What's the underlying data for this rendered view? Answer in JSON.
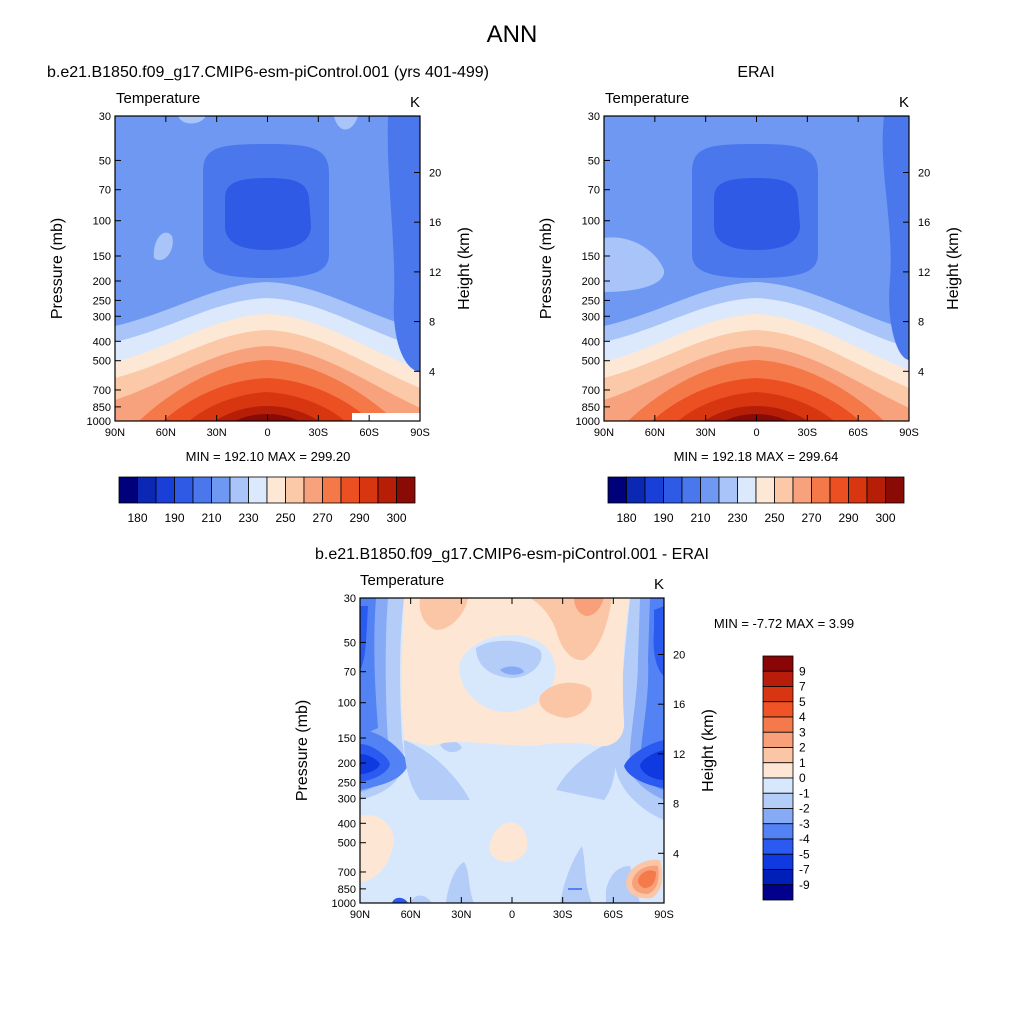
{
  "figure": {
    "title": "ANN"
  },
  "palettes": {
    "temp_colors": [
      "#00007a",
      "#0a28b4",
      "#1a3ed8",
      "#2e5ae6",
      "#4a78ec",
      "#6f98f2",
      "#a8c4f8",
      "#dce8fc",
      "#fde8d6",
      "#fbc8a8",
      "#f7a27c",
      "#f47848",
      "#ec4f22",
      "#d83610",
      "#b61e08",
      "#8a0a06"
    ],
    "diff_colors": [
      "#02008c",
      "#001fb8",
      "#0f3ae0",
      "#2a5af0",
      "#5282f4",
      "#86aaf6",
      "#b4ccf8",
      "#d8e8fc",
      "#fde6d4",
      "#fbc6a6",
      "#f8a07a",
      "#f47a4c",
      "#f05426",
      "#d83612",
      "#b81c0a",
      "#8a0606"
    ]
  },
  "chart_data": [
    {
      "type": "heatmap",
      "id": "model",
      "title": "b.e21.B1850.f09_g17.CMIP6-esm-piControl.001 (yrs 401-499)",
      "left_label": "Temperature",
      "right_label": "K",
      "xlabel": "",
      "ylabel": "Pressure (mb)",
      "ylabel_right": "Height (km)",
      "x_ticks": [
        "90N",
        "60N",
        "30N",
        "0",
        "30S",
        "60S",
        "90S"
      ],
      "y_ticks": [
        "30",
        "50",
        "70",
        "100",
        "150",
        "200",
        "250",
        "300",
        "400",
        "500",
        "700",
        "850",
        "1000"
      ],
      "y_tick_values": [
        30,
        50,
        70,
        100,
        150,
        200,
        250,
        300,
        400,
        500,
        700,
        850,
        1000
      ],
      "height_ticks": [
        "4",
        "8",
        "12",
        "16",
        "20"
      ],
      "height_tick_values": [
        4,
        8,
        12,
        16,
        20
      ],
      "ylim": [
        30,
        1000
      ],
      "stats": "MIN = 192.10  MAX = 299.20",
      "min": 192.1,
      "max": 299.2,
      "colorbar": {
        "orientation": "horizontal",
        "levels": [
          175,
          180,
          185,
          190,
          200,
          210,
          220,
          230,
          240,
          250,
          260,
          270,
          280,
          290,
          295,
          300
        ],
        "labels": [
          "180",
          "190",
          "210",
          "230",
          "250",
          "270",
          "290",
          "300"
        ]
      }
    },
    {
      "type": "heatmap",
      "id": "obs",
      "title": "ERAI",
      "left_label": "Temperature",
      "right_label": "K",
      "xlabel": "",
      "ylabel": "Pressure (mb)",
      "ylabel_right": "Height (km)",
      "x_ticks": [
        "90N",
        "60N",
        "30N",
        "0",
        "30S",
        "60S",
        "90S"
      ],
      "y_ticks": [
        "30",
        "50",
        "70",
        "100",
        "150",
        "200",
        "250",
        "300",
        "400",
        "500",
        "700",
        "850",
        "1000"
      ],
      "y_tick_values": [
        30,
        50,
        70,
        100,
        150,
        200,
        250,
        300,
        400,
        500,
        700,
        850,
        1000
      ],
      "height_ticks": [
        "4",
        "8",
        "12",
        "16",
        "20"
      ],
      "height_tick_values": [
        4,
        8,
        12,
        16,
        20
      ],
      "ylim": [
        30,
        1000
      ],
      "stats": "MIN = 192.18  MAX = 299.64",
      "min": 192.18,
      "max": 299.64,
      "colorbar": {
        "orientation": "horizontal",
        "levels": [
          175,
          180,
          185,
          190,
          200,
          210,
          220,
          230,
          240,
          250,
          260,
          270,
          280,
          290,
          295,
          300
        ],
        "labels": [
          "180",
          "190",
          "210",
          "230",
          "250",
          "270",
          "290",
          "300"
        ]
      }
    },
    {
      "type": "heatmap",
      "id": "diff",
      "title": "b.e21.B1850.f09_g17.CMIP6-esm-piControl.001 - ERAI",
      "left_label": "Temperature",
      "right_label": "K",
      "xlabel": "",
      "ylabel": "Pressure (mb)",
      "ylabel_right": "Height (km)",
      "x_ticks": [
        "90N",
        "60N",
        "30N",
        "0",
        "30S",
        "60S",
        "90S"
      ],
      "y_ticks": [
        "30",
        "50",
        "70",
        "100",
        "150",
        "200",
        "250",
        "300",
        "400",
        "500",
        "700",
        "850",
        "1000"
      ],
      "y_tick_values": [
        30,
        50,
        70,
        100,
        150,
        200,
        250,
        300,
        400,
        500,
        700,
        850,
        1000
      ],
      "height_ticks": [
        "4",
        "8",
        "12",
        "16",
        "20"
      ],
      "height_tick_values": [
        4,
        8,
        12,
        16,
        20
      ],
      "ylim": [
        30,
        1000
      ],
      "stats": "MIN =  -7.72  MAX =   3.99",
      "min": -7.72,
      "max": 3.99,
      "colorbar": {
        "orientation": "vertical",
        "levels": [
          -9,
          -7,
          -5,
          -4,
          -3,
          -2,
          -1,
          0,
          1,
          2,
          3,
          4,
          5,
          7,
          9
        ],
        "labels": [
          "9",
          "7",
          "5",
          "4",
          "3",
          "2",
          "1",
          "0",
          "-1",
          "-2",
          "-3",
          "-4",
          "-5",
          "-7",
          "-9"
        ]
      }
    }
  ]
}
